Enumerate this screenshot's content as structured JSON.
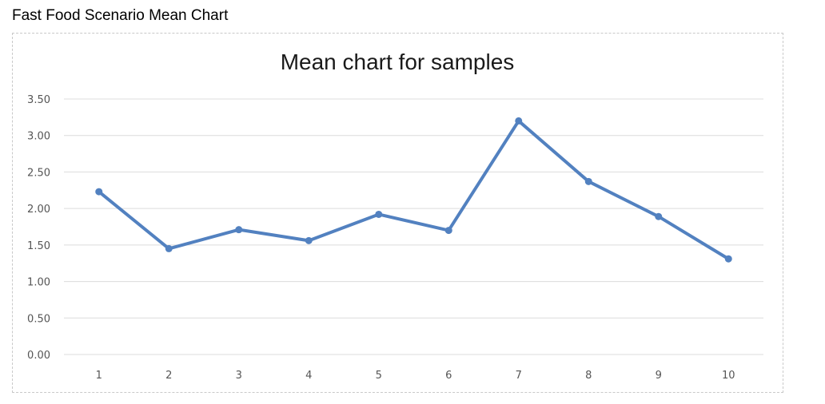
{
  "page": {
    "heading": "Fast Food Scenario Mean Chart"
  },
  "colors": {
    "series": "#5281c0",
    "grid": "#dcdcdc"
  },
  "chart_data": {
    "type": "line",
    "title": "Mean chart for samples",
    "xlabel": "",
    "ylabel": "",
    "x": [
      "1",
      "2",
      "3",
      "4",
      "5",
      "6",
      "7",
      "8",
      "9",
      "10"
    ],
    "series": [
      {
        "values": [
          2.23,
          1.45,
          1.71,
          1.56,
          1.92,
          1.7,
          3.2,
          2.37,
          1.89,
          1.31
        ]
      }
    ],
    "ylim": [
      0,
      3.5
    ],
    "y_ticks": [
      "0.00",
      "0.50",
      "1.00",
      "1.50",
      "2.00",
      "2.50",
      "3.00",
      "3.50"
    ],
    "grid": true,
    "legend": "none",
    "markers": true
  }
}
